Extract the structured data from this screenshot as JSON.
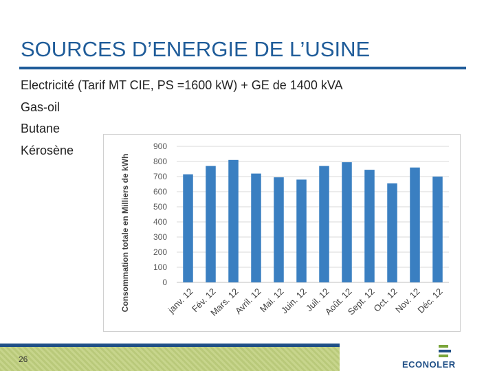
{
  "title": "SOURCES D’ENERGIE DE L’USINE",
  "bullets": [
    "Electricité (Tarif MT CIE, PS =1600 kW) + GE de 1400 kVA",
    "Gas-oil",
    "Butane",
    "Kérosène"
  ],
  "page_number": "26",
  "logo": "ECONOLER",
  "chart_data": {
    "type": "bar",
    "y_label": "Consommation totale en Milliers de kWh",
    "categories": [
      "janv. 12",
      "Fév. 12",
      "Mars. 12",
      "Avril. 12",
      "Mai. 12",
      "Juin. 12",
      "Juil. 12",
      "Août. 12",
      "Sept. 12",
      "Oct. 12",
      "Nov. 12",
      "Déc. 12"
    ],
    "values": [
      715,
      770,
      810,
      720,
      695,
      680,
      770,
      795,
      745,
      655,
      760,
      700
    ],
    "color": "#3a7fc1",
    "ylim": [
      0,
      900
    ],
    "yticks": [
      0,
      100,
      200,
      300,
      400,
      500,
      600,
      700,
      800,
      900
    ],
    "grid": true
  }
}
